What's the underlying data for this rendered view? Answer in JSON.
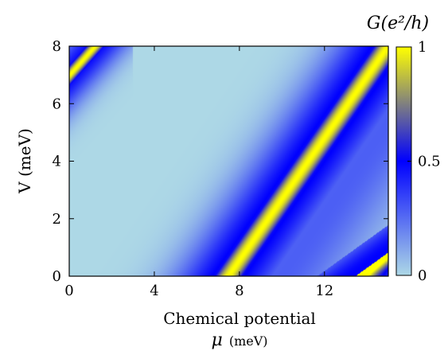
{
  "chart_data": {
    "type": "heatmap",
    "title": "",
    "xlabel_line1": "Chemical potential",
    "xlabel_symbol": "μ",
    "xlabel_unit": "(meV)",
    "ylabel": "V (meV)",
    "x_range": [
      0,
      15
    ],
    "y_range": [
      0,
      8
    ],
    "x_ticks": [
      0,
      4,
      8,
      12
    ],
    "y_ticks": [
      0,
      2,
      4,
      6,
      8
    ],
    "colorbar": {
      "title": "G(e²/h)",
      "range": [
        0,
        1
      ],
      "ticks": [
        0,
        0.5,
        1
      ],
      "tick_labels": [
        "0",
        "0.5",
        "1"
      ],
      "colormap": [
        {
          "v": 0.0,
          "color": "#add8e6"
        },
        {
          "v": 0.5,
          "color": "#0000ff"
        },
        {
          "v": 1.0,
          "color": "#ffff00"
        }
      ]
    },
    "features": [
      {
        "name": "main conductance ridge (G≈1)",
        "line": [
          [
            7.5,
            0
          ],
          [
            15,
            8
          ]
        ]
      },
      {
        "name": "secondary ridge",
        "line": [
          [
            13.5,
            0
          ],
          [
            15,
            0.8
          ]
        ]
      },
      {
        "name": "top-left corner ridge",
        "line": [
          [
            0,
            7.0
          ],
          [
            1.2,
            8
          ]
        ]
      }
    ],
    "grid": false,
    "legend": "colorbar-right"
  }
}
